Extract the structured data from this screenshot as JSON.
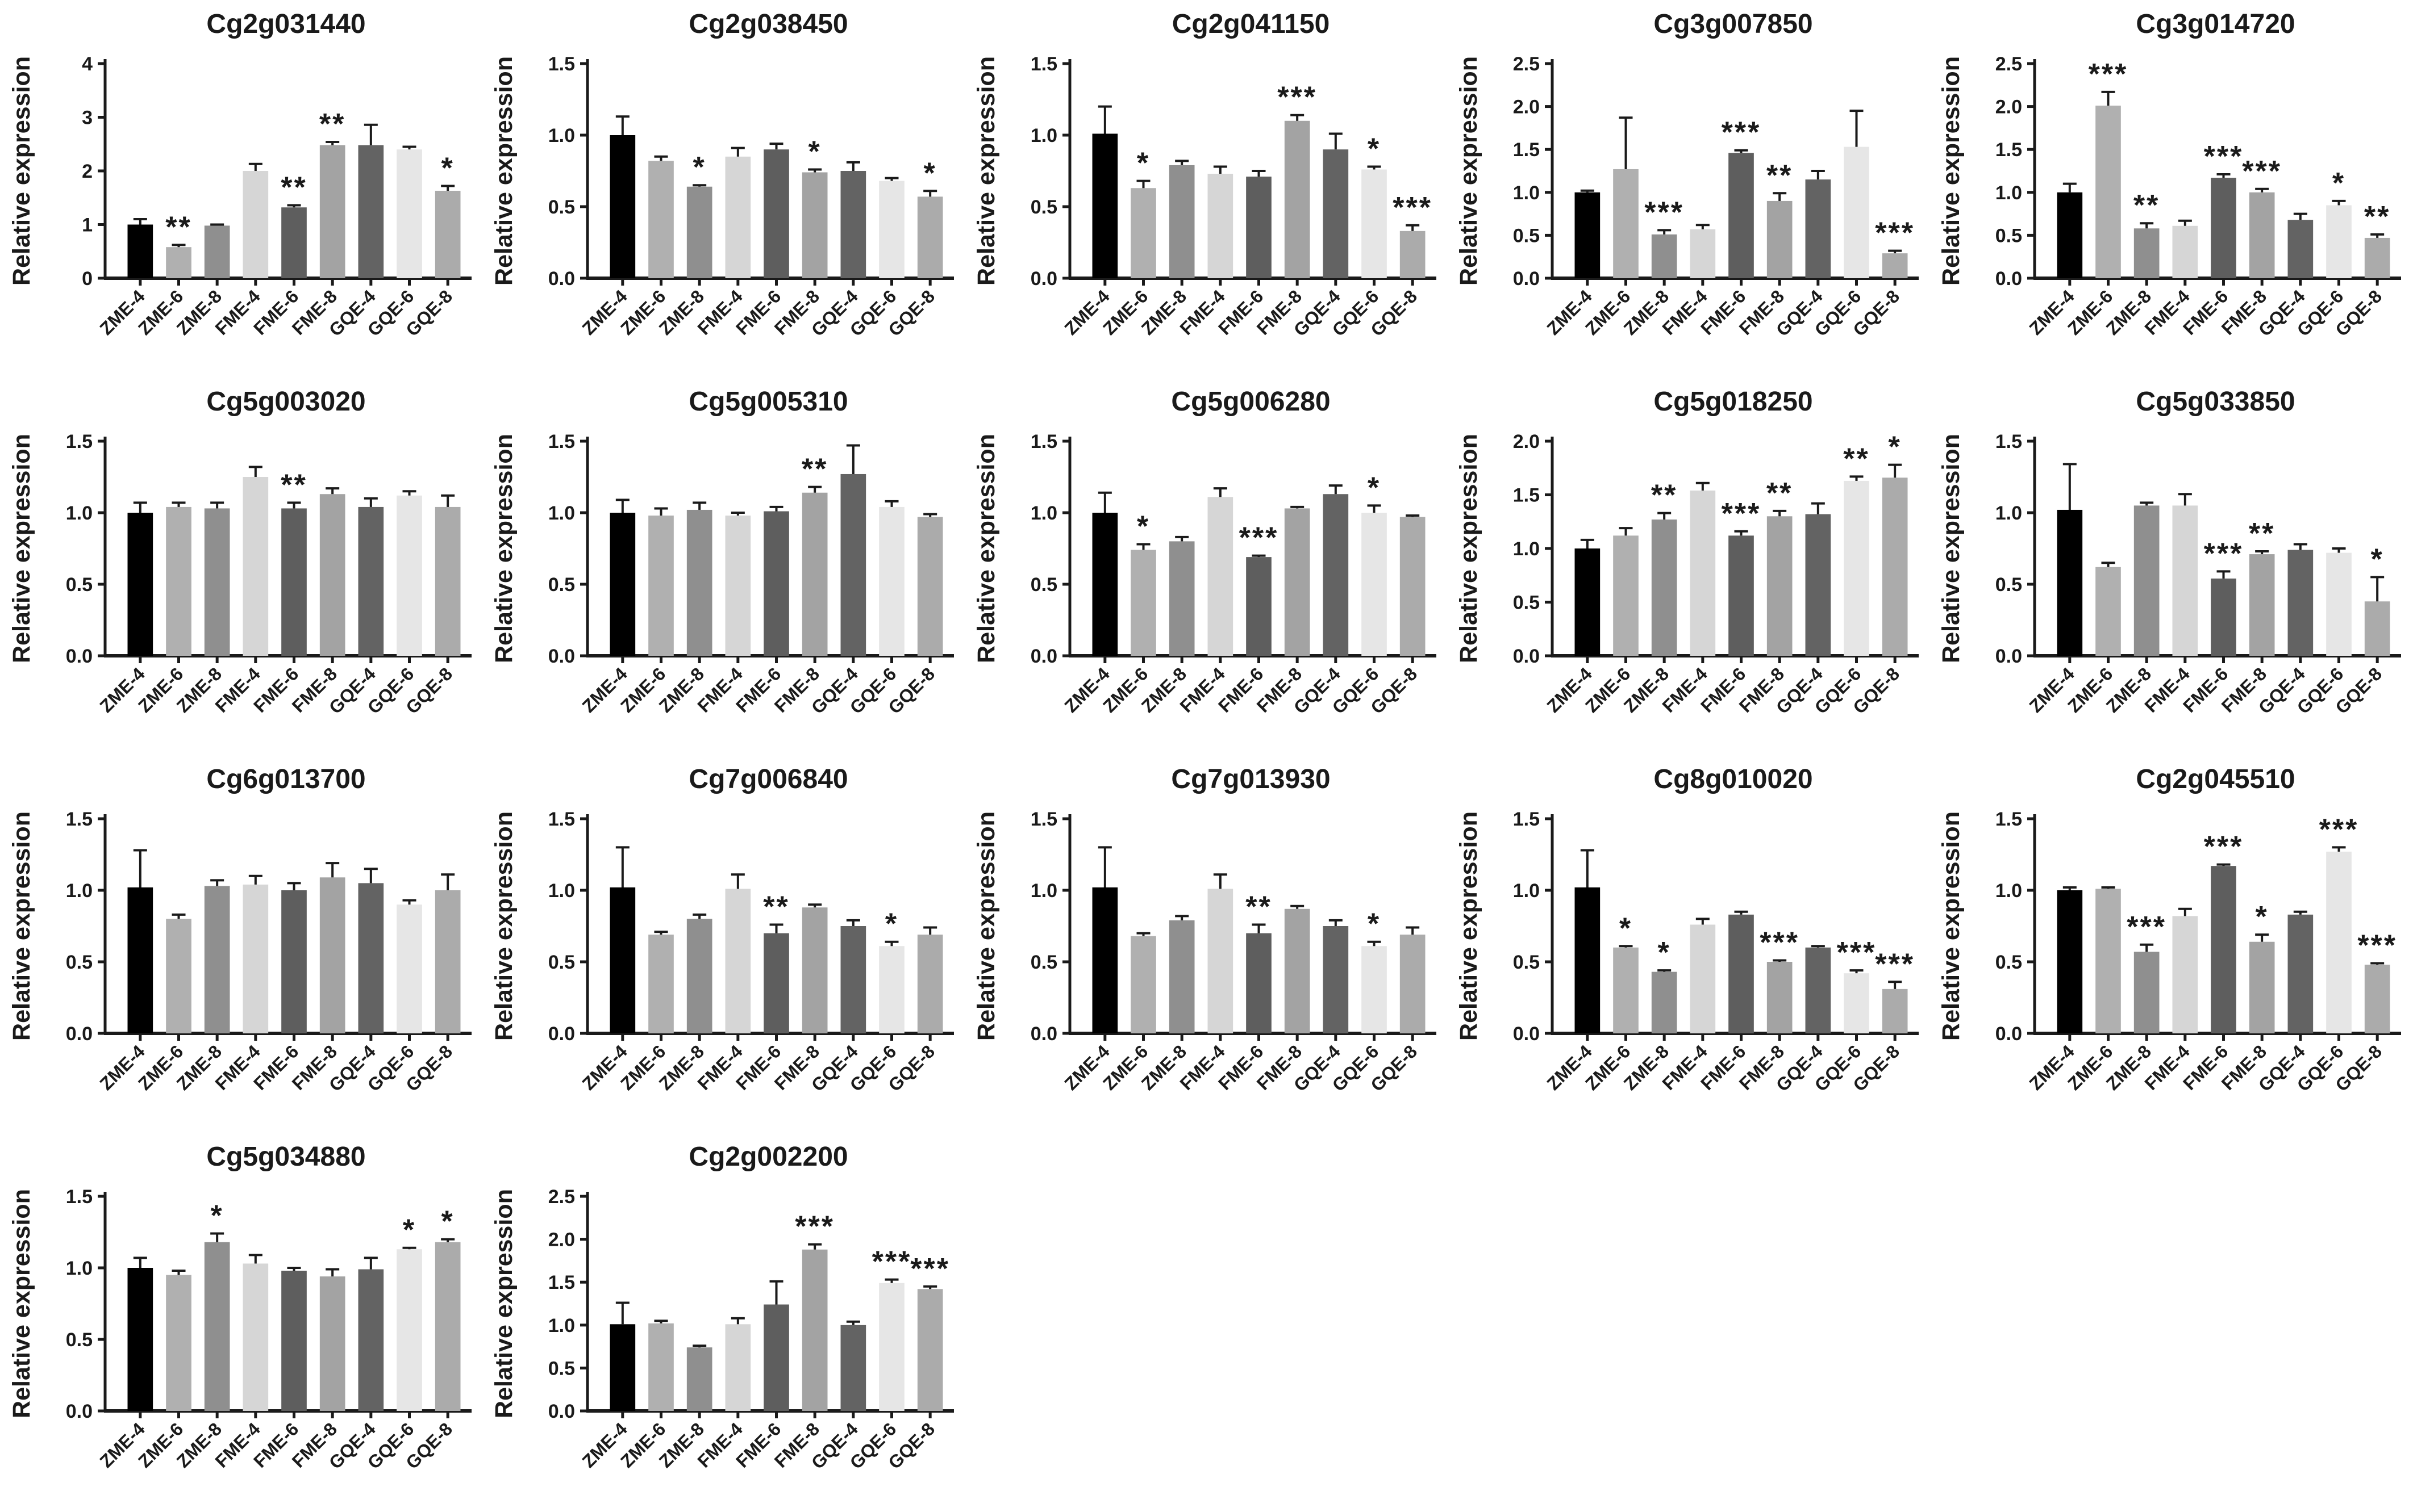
{
  "figure": {
    "background": "#ffffff",
    "axis_color": "#1a1a1a"
  },
  "chart_data": {
    "type": "bar",
    "ylabel": "Relative expression",
    "grid": "off",
    "legend": "none",
    "error_bars": "upper-whisker",
    "categories": [
      "ZME-4",
      "ZME-6",
      "ZME-8",
      "FME-4",
      "FME-6",
      "FME-8",
      "GQE-4",
      "GQE-6",
      "GQE-8"
    ],
    "bar_colors": [
      "#000000",
      "#b0b0b0",
      "#8f8f8f",
      "#d6d6d6",
      "#5e5e5e",
      "#a3a3a3",
      "#636363",
      "#e6e6e6",
      "#ababab"
    ],
    "charts": [
      {
        "title": "Cg2g031440",
        "ylim": [
          0,
          4
        ],
        "ytick_step": 1,
        "ytick_decimals": 0,
        "values": [
          1.0,
          0.58,
          0.98,
          2.0,
          1.32,
          2.48,
          2.48,
          2.4,
          1.63
        ],
        "errors": [
          0.1,
          0.04,
          0.02,
          0.13,
          0.04,
          0.06,
          0.38,
          0.05,
          0.09
        ],
        "sig": [
          "",
          "**",
          "",
          "",
          "**",
          "**",
          "",
          "",
          "*"
        ]
      },
      {
        "title": "Cg2g038450",
        "ylim": [
          0,
          1.5
        ],
        "ytick_step": 0.5,
        "ytick_decimals": 1,
        "values": [
          1.0,
          0.82,
          0.64,
          0.85,
          0.9,
          0.74,
          0.75,
          0.68,
          0.57
        ],
        "errors": [
          0.13,
          0.03,
          0.01,
          0.06,
          0.04,
          0.02,
          0.06,
          0.02,
          0.04
        ],
        "sig": [
          "",
          "",
          "*",
          "",
          "",
          "*",
          "",
          "",
          "*"
        ]
      },
      {
        "title": "Cg2g041150",
        "ylim": [
          0,
          1.5
        ],
        "ytick_step": 0.5,
        "ytick_decimals": 1,
        "values": [
          1.01,
          0.63,
          0.79,
          0.73,
          0.71,
          1.1,
          0.9,
          0.76,
          0.33
        ],
        "errors": [
          0.19,
          0.05,
          0.03,
          0.05,
          0.04,
          0.04,
          0.11,
          0.02,
          0.04
        ],
        "sig": [
          "",
          "*",
          "",
          "",
          "",
          "***",
          "",
          "*",
          "***"
        ]
      },
      {
        "title": "Cg3g007850",
        "ylim": [
          0,
          2.5
        ],
        "ytick_step": 0.5,
        "ytick_decimals": 1,
        "values": [
          1.0,
          1.27,
          0.51,
          0.57,
          1.46,
          0.9,
          1.15,
          1.53,
          0.29
        ],
        "errors": [
          0.02,
          0.6,
          0.05,
          0.05,
          0.03,
          0.09,
          0.1,
          0.42,
          0.03
        ],
        "sig": [
          "",
          "",
          "***",
          "",
          "***",
          "**",
          "",
          "",
          "***"
        ]
      },
      {
        "title": "Cg3g014720",
        "ylim": [
          0,
          2.5
        ],
        "ytick_step": 0.5,
        "ytick_decimals": 1,
        "values": [
          1.0,
          2.01,
          0.58,
          0.61,
          1.17,
          1.0,
          0.68,
          0.85,
          0.47
        ],
        "errors": [
          0.1,
          0.16,
          0.06,
          0.06,
          0.04,
          0.04,
          0.07,
          0.05,
          0.04
        ],
        "sig": [
          "",
          "***",
          "**",
          "",
          "***",
          "***",
          "",
          "*",
          "**"
        ]
      },
      {
        "title": "Cg5g003020",
        "ylim": [
          0,
          1.5
        ],
        "ytick_step": 0.5,
        "ytick_decimals": 1,
        "values": [
          1.0,
          1.04,
          1.03,
          1.25,
          1.03,
          1.13,
          1.04,
          1.12,
          1.04
        ],
        "errors": [
          0.07,
          0.03,
          0.04,
          0.07,
          0.04,
          0.04,
          0.06,
          0.03,
          0.08
        ],
        "sig": [
          "",
          "",
          "",
          "",
          "**",
          "",
          "",
          "",
          ""
        ]
      },
      {
        "title": "Cg5g005310",
        "ylim": [
          0,
          1.5
        ],
        "ytick_step": 0.5,
        "ytick_decimals": 1,
        "values": [
          1.0,
          0.98,
          1.02,
          0.98,
          1.01,
          1.14,
          1.27,
          1.04,
          0.97
        ],
        "errors": [
          0.09,
          0.05,
          0.05,
          0.02,
          0.03,
          0.04,
          0.2,
          0.04,
          0.02
        ],
        "sig": [
          "",
          "",
          "",
          "",
          "",
          "**",
          "",
          "",
          ""
        ]
      },
      {
        "title": "Cg5g006280",
        "ylim": [
          0,
          1.5
        ],
        "ytick_step": 0.5,
        "ytick_decimals": 1,
        "values": [
          1.0,
          0.74,
          0.8,
          1.11,
          0.69,
          1.03,
          1.13,
          1.0,
          0.97
        ],
        "errors": [
          0.14,
          0.04,
          0.03,
          0.06,
          0.01,
          0.01,
          0.06,
          0.05,
          0.01
        ],
        "sig": [
          "",
          "*",
          "",
          "",
          "***",
          "",
          "",
          "*",
          ""
        ]
      },
      {
        "title": "Cg5g018250",
        "ylim": [
          0,
          2.0
        ],
        "ytick_step": 0.5,
        "ytick_decimals": 1,
        "values": [
          1.0,
          1.12,
          1.27,
          1.54,
          1.12,
          1.3,
          1.32,
          1.63,
          1.66
        ],
        "errors": [
          0.08,
          0.07,
          0.06,
          0.07,
          0.04,
          0.05,
          0.1,
          0.04,
          0.12
        ],
        "sig": [
          "",
          "",
          "**",
          "",
          "***",
          "**",
          "",
          "**",
          "*"
        ]
      },
      {
        "title": "Cg5g033850",
        "ylim": [
          0,
          1.5
        ],
        "ytick_step": 0.5,
        "ytick_decimals": 1,
        "values": [
          1.02,
          0.62,
          1.05,
          1.05,
          0.54,
          0.71,
          0.74,
          0.72,
          0.38
        ],
        "errors": [
          0.32,
          0.03,
          0.02,
          0.08,
          0.05,
          0.02,
          0.04,
          0.03,
          0.17
        ],
        "sig": [
          "",
          "",
          "",
          "",
          "***",
          "**",
          "",
          "",
          "*"
        ]
      },
      {
        "title": "Cg6g013700",
        "ylim": [
          0,
          1.5
        ],
        "ytick_step": 0.5,
        "ytick_decimals": 1,
        "values": [
          1.02,
          0.8,
          1.03,
          1.04,
          1.0,
          1.09,
          1.05,
          0.9,
          1.0
        ],
        "errors": [
          0.26,
          0.03,
          0.04,
          0.06,
          0.05,
          0.1,
          0.1,
          0.03,
          0.11
        ],
        "sig": [
          "",
          "",
          "",
          "",
          "",
          "",
          "",
          "",
          ""
        ]
      },
      {
        "title": "Cg7g006840",
        "ylim": [
          0,
          1.5
        ],
        "ytick_step": 0.5,
        "ytick_decimals": 1,
        "values": [
          1.02,
          0.69,
          0.8,
          1.01,
          0.7,
          0.88,
          0.75,
          0.61,
          0.69
        ],
        "errors": [
          0.28,
          0.02,
          0.03,
          0.1,
          0.06,
          0.02,
          0.04,
          0.03,
          0.05
        ],
        "sig": [
          "",
          "",
          "",
          "",
          "**",
          "",
          "",
          "*",
          ""
        ]
      },
      {
        "title": "Cg7g013930",
        "ylim": [
          0,
          1.5
        ],
        "ytick_step": 0.5,
        "ytick_decimals": 1,
        "values": [
          1.02,
          0.68,
          0.79,
          1.01,
          0.7,
          0.87,
          0.75,
          0.61,
          0.69
        ],
        "errors": [
          0.28,
          0.02,
          0.03,
          0.1,
          0.06,
          0.02,
          0.04,
          0.03,
          0.05
        ],
        "sig": [
          "",
          "",
          "",
          "",
          "**",
          "",
          "",
          "*",
          ""
        ]
      },
      {
        "title": "Cg8g010020",
        "ylim": [
          0,
          1.5
        ],
        "ytick_step": 0.5,
        "ytick_decimals": 1,
        "values": [
          1.02,
          0.6,
          0.43,
          0.76,
          0.83,
          0.5,
          0.6,
          0.42,
          0.31
        ],
        "errors": [
          0.26,
          0.01,
          0.01,
          0.04,
          0.02,
          0.01,
          0.01,
          0.02,
          0.05
        ],
        "sig": [
          "",
          "*",
          "*",
          "",
          "",
          "***",
          "",
          "***",
          "***"
        ]
      },
      {
        "title": "Cg2g045510",
        "ylim": [
          0,
          1.5
        ],
        "ytick_step": 0.5,
        "ytick_decimals": 1,
        "values": [
          1.0,
          1.01,
          0.57,
          0.82,
          1.17,
          0.64,
          0.83,
          1.27,
          0.48
        ],
        "errors": [
          0.02,
          0.01,
          0.05,
          0.05,
          0.01,
          0.05,
          0.02,
          0.03,
          0.01
        ],
        "sig": [
          "",
          "",
          "***",
          "",
          "***",
          "*",
          "",
          "***",
          "***"
        ]
      },
      {
        "title": "Cg5g034880",
        "ylim": [
          0,
          1.5
        ],
        "ytick_step": 0.5,
        "ytick_decimals": 1,
        "values": [
          1.0,
          0.95,
          1.18,
          1.03,
          0.98,
          0.94,
          0.99,
          1.13,
          1.18
        ],
        "errors": [
          0.07,
          0.03,
          0.06,
          0.06,
          0.02,
          0.05,
          0.08,
          0.01,
          0.02
        ],
        "sig": [
          "",
          "",
          "*",
          "",
          "",
          "",
          "",
          "*",
          "*"
        ]
      },
      {
        "title": "Cg2g002200",
        "ylim": [
          0,
          2.5
        ],
        "ytick_step": 0.5,
        "ytick_decimals": 1,
        "values": [
          1.01,
          1.02,
          0.74,
          1.01,
          1.24,
          1.88,
          1.0,
          1.49,
          1.42
        ],
        "errors": [
          0.25,
          0.03,
          0.02,
          0.07,
          0.27,
          0.06,
          0.04,
          0.04,
          0.03
        ],
        "sig": [
          "",
          "",
          "",
          "",
          "",
          "***",
          "",
          "***",
          "***"
        ]
      }
    ]
  }
}
